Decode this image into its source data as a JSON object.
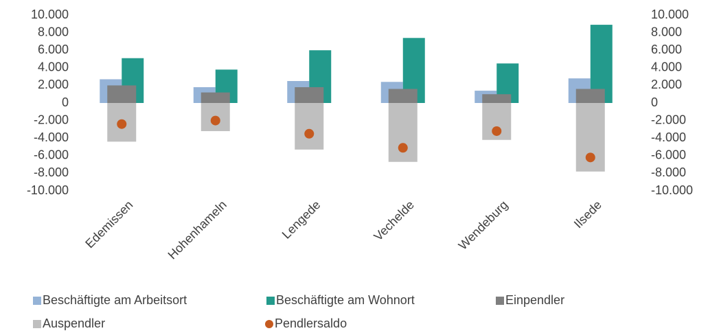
{
  "chart_data": {
    "type": "bar",
    "categories": [
      "Edemissen",
      "Hohenhameln",
      "Lengede",
      "Vechelde",
      "Wendeburg",
      "Ilsede"
    ],
    "series": [
      {
        "name": "Beschäftigte am Arbeitsort",
        "color": "#95b3d7",
        "values": [
          2700,
          1800,
          2500,
          2400,
          1400,
          2800
        ]
      },
      {
        "name": "Beschäftigte am Wohnort",
        "color": "#239a8c",
        "values": [
          5100,
          3800,
          6000,
          7400,
          4500,
          8900
        ]
      },
      {
        "name": "Einpendler",
        "color": "#7f7f7f",
        "axis": "y2",
        "values": [
          2000,
          1200,
          1800,
          1600,
          1000,
          1600
        ]
      },
      {
        "name": "Auspendler",
        "color": "#bfbfbf",
        "axis": "y2",
        "values": [
          -4400,
          -3200,
          -5300,
          -6700,
          -4200,
          -7800
        ]
      },
      {
        "name": "Pendlersaldo",
        "color": "#c55a1f",
        "axis": "y2",
        "values": [
          -2400,
          -2000,
          -3500,
          -5100,
          -3200,
          -6200
        ]
      }
    ],
    "ylim": [
      -10000,
      10000
    ],
    "yticks": [
      {
        "value": 10000,
        "label": "10.000"
      },
      {
        "value": 8000,
        "label": "8.000"
      },
      {
        "value": 6000,
        "label": "6.000"
      },
      {
        "value": 4000,
        "label": "4.000"
      },
      {
        "value": 2000,
        "label": "2.000"
      },
      0,
      {
        "value": -2000,
        "label": "-2.000"
      },
      {
        "value": -4000,
        "label": "-4.000"
      },
      {
        "value": -6000,
        "label": "-6.000"
      },
      {
        "value": -8000,
        "label": "-8.000"
      },
      {
        "value": -10000,
        "label": "-10.000"
      }
    ],
    "y2lim": [
      -10000,
      10000
    ],
    "y2ticks": [
      {
        "value": 10000,
        "label": "10.000"
      },
      {
        "value": 8000,
        "label": "8.000"
      },
      {
        "value": 6000,
        "label": "6.000"
      },
      {
        "value": 4000,
        "label": "4.000"
      },
      {
        "value": 2000,
        "label": "2.000"
      },
      0,
      {
        "value": -2000,
        "label": "-2.000"
      },
      {
        "value": -4000,
        "label": "-4.000"
      },
      {
        "value": -6000,
        "label": "-6.000"
      },
      {
        "value": -8000,
        "label": "-8.000"
      },
      {
        "value": -10000,
        "label": "-10.000"
      }
    ],
    "legend": "bottom"
  }
}
